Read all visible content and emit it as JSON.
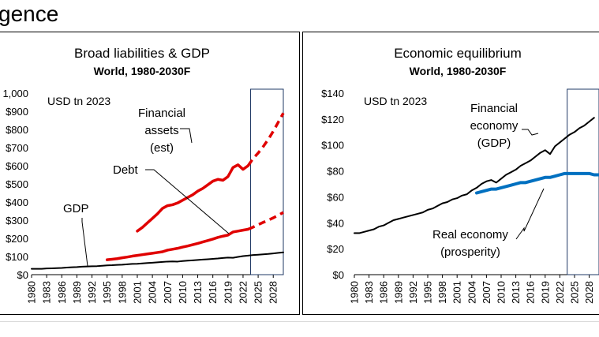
{
  "heading": "gence",
  "colors": {
    "black": "#000000",
    "red": "#e00000",
    "blue": "#0070c0",
    "box": "#1f3864"
  },
  "chart_data": [
    {
      "type": "line",
      "title": "Broad liabilities & GDP",
      "subtitle": "World, 1980-2030F",
      "unit_label": "USD tn 2023",
      "ylim": [
        0,
        1000
      ],
      "yticks": [
        0,
        100,
        200,
        300,
        400,
        500,
        600,
        700,
        800,
        900,
        1000
      ],
      "yticklabels": [
        "$0",
        "$100",
        "$200",
        "$300",
        "$400",
        "$500",
        "$600",
        "$700",
        "$800",
        "$900",
        "1,000"
      ],
      "xlim": [
        1980,
        2030
      ],
      "xticks": [
        1980,
        1983,
        1986,
        1989,
        1992,
        1995,
        1998,
        2001,
        2004,
        2007,
        2010,
        2013,
        2016,
        2019,
        2022,
        2025,
        2028
      ],
      "forecast_box": [
        2023.5,
        2030
      ],
      "annotations": [
        {
          "lines": [
            "Financial",
            "assets",
            "(est)"
          ]
        },
        {
          "lines": [
            "Debt"
          ]
        },
        {
          "lines": [
            "GDP"
          ]
        }
      ],
      "series": [
        {
          "name": "Financial assets (est)",
          "color": "#e00000",
          "x": [
            2001,
            2002,
            2003,
            2004,
            2005,
            2006,
            2007,
            2008,
            2009,
            2010,
            2011,
            2012,
            2013,
            2014,
            2015,
            2016,
            2017,
            2018,
            2019,
            2020,
            2021,
            2022,
            2023
          ],
          "y": [
            240,
            260,
            285,
            310,
            335,
            365,
            380,
            385,
            395,
            410,
            425,
            440,
            460,
            475,
            495,
            515,
            525,
            520,
            540,
            590,
            605,
            580,
            600
          ],
          "forecast": {
            "x": [
              2023,
              2024,
              2025,
              2026,
              2027,
              2028,
              2029,
              2030
            ],
            "y": [
              600,
              640,
              670,
              705,
              745,
              790,
              840,
              890
            ]
          }
        },
        {
          "name": "Debt",
          "color": "#e00000",
          "x": [
            1995,
            1996,
            1997,
            1998,
            1999,
            2000,
            2001,
            2002,
            2003,
            2004,
            2005,
            2006,
            2007,
            2008,
            2009,
            2010,
            2011,
            2012,
            2013,
            2014,
            2015,
            2016,
            2017,
            2018,
            2019,
            2020,
            2021,
            2022,
            2023
          ],
          "y": [
            82,
            85,
            88,
            93,
            97,
            102,
            106,
            110,
            114,
            118,
            122,
            126,
            135,
            140,
            145,
            152,
            158,
            165,
            172,
            180,
            188,
            196,
            205,
            212,
            218,
            235,
            240,
            245,
            250
          ],
          "forecast": {
            "x": [
              2023,
              2024,
              2025,
              2026,
              2027,
              2028,
              2029,
              2030
            ],
            "y": [
              250,
              262,
              275,
              288,
              300,
              313,
              327,
              343
            ]
          }
        },
        {
          "name": "GDP",
          "color": "#000000",
          "x": [
            1980,
            1981,
            1982,
            1983,
            1984,
            1985,
            1986,
            1987,
            1988,
            1989,
            1990,
            1991,
            1992,
            1993,
            1994,
            1995,
            1996,
            1997,
            1998,
            1999,
            2000,
            2001,
            2002,
            2003,
            2004,
            2005,
            2006,
            2007,
            2008,
            2009,
            2010,
            2011,
            2012,
            2013,
            2014,
            2015,
            2016,
            2017,
            2018,
            2019,
            2020,
            2021,
            2022,
            2023,
            2024,
            2025,
            2026,
            2027,
            2028,
            2029,
            2030
          ],
          "y": [
            32,
            32,
            32,
            34,
            35,
            36,
            37,
            39,
            41,
            42,
            44,
            45,
            46,
            47,
            49,
            51,
            52,
            54,
            55,
            57,
            59,
            60,
            62,
            64,
            66,
            68,
            70,
            72,
            73,
            72,
            75,
            77,
            79,
            81,
            83,
            85,
            87,
            89,
            92,
            94,
            93,
            98,
            102,
            105,
            108,
            110,
            112,
            114,
            117,
            120,
            123
          ]
        }
      ]
    },
    {
      "type": "line",
      "title": "Economic equilibrium",
      "subtitle": "World, 1980-2030F",
      "unit_label": "USD tn 2023",
      "ylim": [
        0,
        140
      ],
      "yticks": [
        0,
        20,
        40,
        60,
        80,
        100,
        120,
        140
      ],
      "yticklabels": [
        "$0",
        "$20",
        "$40",
        "$60",
        "$80",
        "$100",
        "$120",
        "$140"
      ],
      "xlim": [
        1980,
        2030
      ],
      "xticks": [
        1980,
        1983,
        1986,
        1989,
        1992,
        1995,
        1998,
        2001,
        2004,
        2007,
        2010,
        2013,
        2016,
        2019,
        2022,
        2025,
        2028
      ],
      "forecast_box": [
        2023.5,
        2030
      ],
      "annotations": [
        {
          "lines": [
            "Financial",
            "economy",
            "(GDP)"
          ]
        },
        {
          "lines": [
            "Real economy",
            "(prosperity)"
          ]
        }
      ],
      "series": [
        {
          "name": "Financial economy (GDP)",
          "color": "#000000",
          "x": [
            1980,
            1981,
            1982,
            1983,
            1984,
            1985,
            1986,
            1987,
            1988,
            1989,
            1990,
            1991,
            1992,
            1993,
            1994,
            1995,
            1996,
            1997,
            1998,
            1999,
            2000,
            2001,
            2002,
            2003,
            2004,
            2005,
            2006,
            2007,
            2008,
            2009,
            2010,
            2011,
            2012,
            2013,
            2014,
            2015,
            2016,
            2017,
            2018,
            2019,
            2020,
            2021,
            2022,
            2023,
            2024,
            2025,
            2026,
            2027,
            2028,
            2029
          ],
          "y": [
            32,
            32,
            33,
            34,
            35,
            37,
            38,
            40,
            42,
            43,
            44,
            45,
            46,
            47,
            48,
            50,
            51,
            53,
            55,
            56,
            58,
            59,
            61,
            62,
            65,
            67,
            70,
            72,
            73,
            71,
            74,
            77,
            79,
            81,
            84,
            86,
            88,
            91,
            94,
            96,
            93,
            99,
            102,
            105,
            108,
            110,
            113,
            115,
            118,
            121
          ]
        },
        {
          "name": "Real economy (prosperity)",
          "color": "#0070c0",
          "x": [
            2005,
            2006,
            2007,
            2008,
            2009,
            2010,
            2011,
            2012,
            2013,
            2014,
            2015,
            2016,
            2017,
            2018,
            2019,
            2020,
            2021,
            2022,
            2023,
            2024,
            2025,
            2026,
            2027,
            2028,
            2029,
            2030
          ],
          "y": [
            63,
            64,
            65,
            66,
            66,
            67,
            68,
            69,
            70,
            71,
            71,
            72,
            73,
            74,
            75,
            75,
            76,
            77,
            78,
            78,
            78,
            78,
            78,
            78,
            77,
            77
          ]
        }
      ]
    }
  ]
}
